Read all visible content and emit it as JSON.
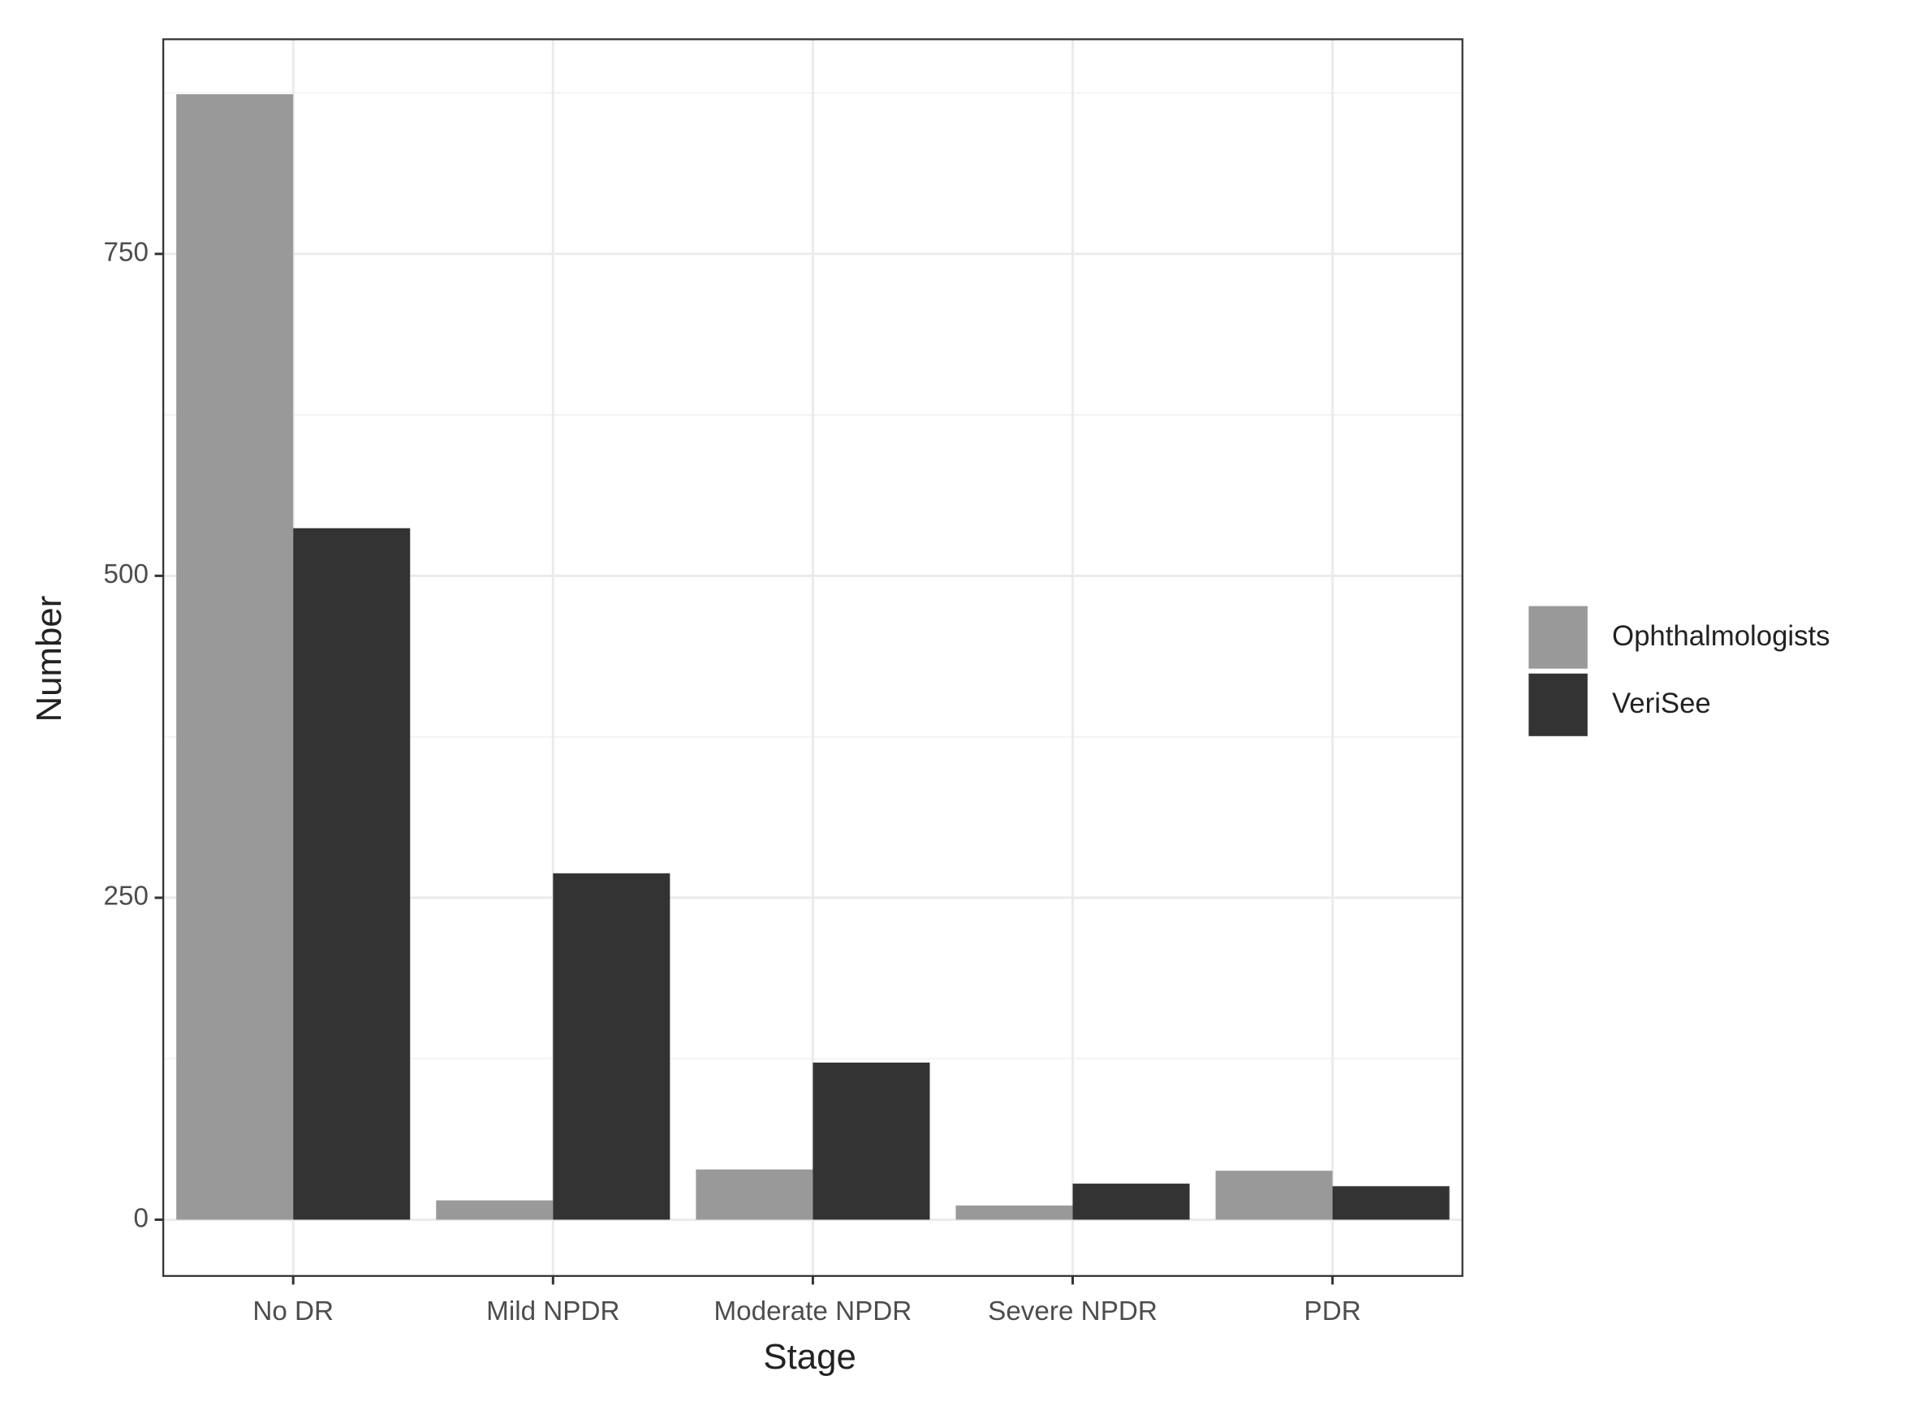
{
  "chart_data": {
    "type": "bar",
    "x_label": "Stage",
    "y_label": "Number",
    "categories": [
      "No DR",
      "Mild NPDR",
      "Moderate NPDR",
      "Severe NPDR",
      "PDR"
    ],
    "series": [
      {
        "name": "Ophthalmologists",
        "color": "#999999",
        "values": [
          874,
          15,
          39,
          11,
          38
        ]
      },
      {
        "name": "VeriSee",
        "color": "#333333",
        "values": [
          537,
          269,
          122,
          28,
          26
        ]
      }
    ],
    "ylim": [
      -43.7,
      916.7
    ],
    "yticks": [
      0,
      250,
      500,
      750
    ],
    "minor_yticks": [
      125,
      375,
      625,
      875
    ],
    "grid": true,
    "legend": "right"
  }
}
